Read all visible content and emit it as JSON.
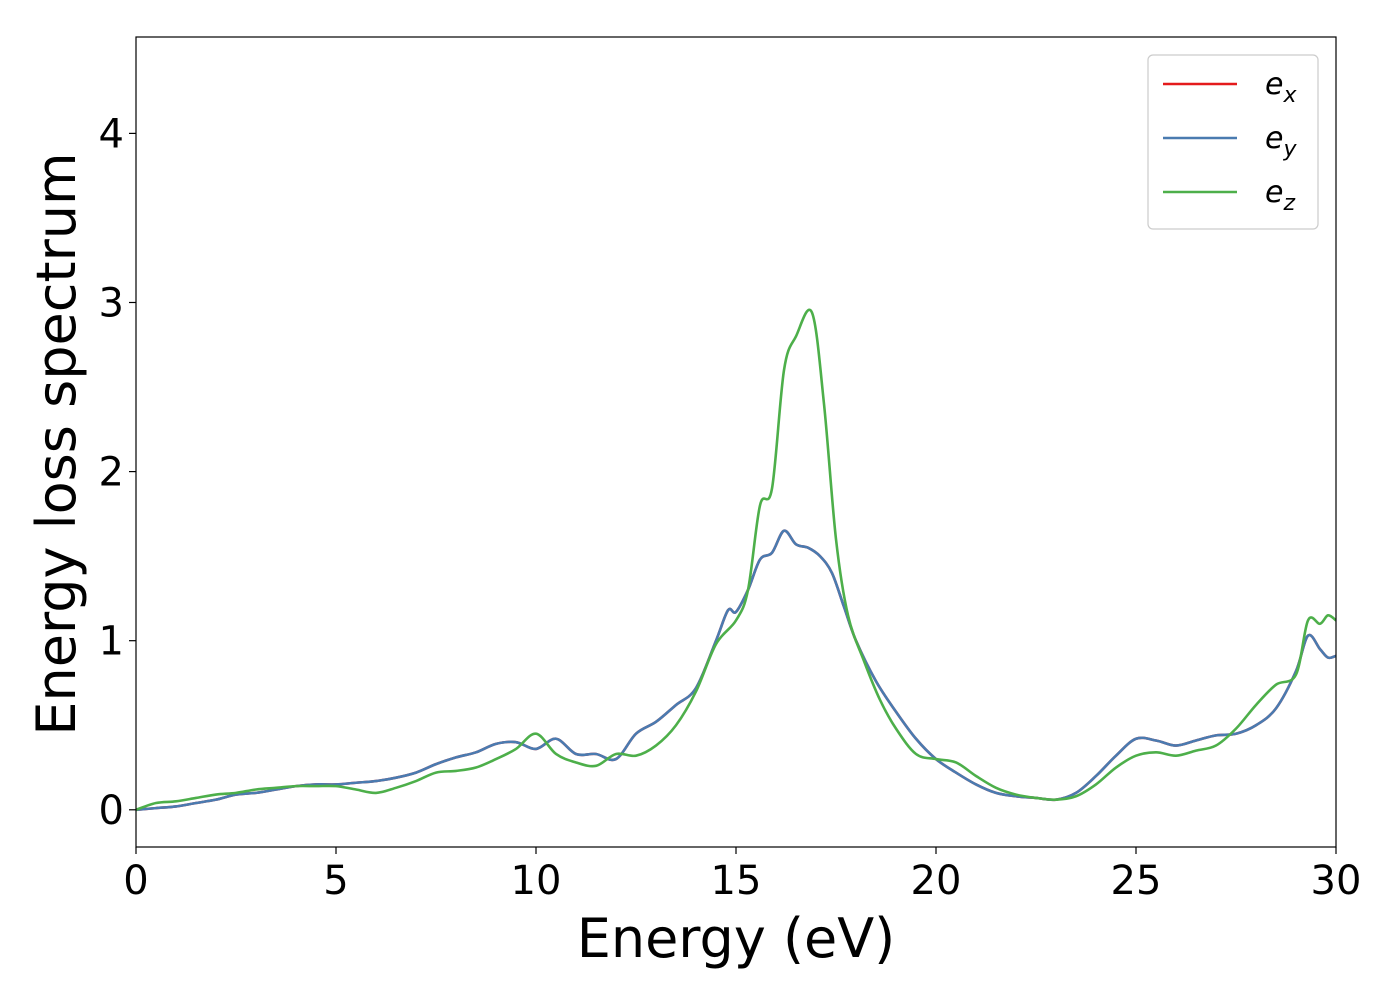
{
  "chart_data": {
    "type": "line",
    "title": "",
    "xlabel": "Energy (eV)",
    "ylabel": "Energy loss spectrum",
    "xlim": [
      0,
      30
    ],
    "ylim": [
      -0.22,
      4.57
    ],
    "x_ticks": [
      0,
      5,
      10,
      15,
      20,
      25,
      30
    ],
    "x_tick_labels": [
      "0",
      "5",
      "10",
      "15",
      "20",
      "25",
      "30"
    ],
    "y_ticks": [
      0,
      1,
      2,
      3,
      4
    ],
    "y_tick_labels": [
      "0",
      "1",
      "2",
      "3",
      "4"
    ],
    "grid": false,
    "legend_position": "top-right",
    "series": [
      {
        "name": "e",
        "subscript": "x",
        "color": "#e41a1c",
        "x": [
          0,
          0.5,
          1,
          1.5,
          2,
          2.5,
          3,
          3.5,
          4,
          4.5,
          5,
          5.5,
          6,
          6.5,
          7,
          7.5,
          8,
          8.5,
          9,
          9.5,
          10,
          10.5,
          11,
          11.5,
          12,
          12.5,
          13,
          13.5,
          14,
          14.5,
          14.8,
          15,
          15.3,
          15.6,
          15.9,
          16.2,
          16.5,
          16.8,
          17.1,
          17.4,
          17.7,
          18,
          18.5,
          19,
          19.5,
          20,
          20.5,
          21,
          21.5,
          22,
          22.5,
          23,
          23.5,
          24,
          24.5,
          25,
          25.5,
          26,
          26.5,
          27,
          27.5,
          28,
          28.5,
          29,
          29.3,
          29.6,
          29.8,
          30
        ],
        "y": [
          0.0,
          0.01,
          0.02,
          0.04,
          0.06,
          0.09,
          0.1,
          0.12,
          0.14,
          0.15,
          0.15,
          0.16,
          0.17,
          0.19,
          0.22,
          0.27,
          0.31,
          0.34,
          0.39,
          0.4,
          0.36,
          0.42,
          0.33,
          0.33,
          0.3,
          0.45,
          0.52,
          0.62,
          0.72,
          1.0,
          1.18,
          1.17,
          1.3,
          1.48,
          1.52,
          1.65,
          1.57,
          1.55,
          1.5,
          1.4,
          1.2,
          1.0,
          0.76,
          0.58,
          0.42,
          0.3,
          0.22,
          0.15,
          0.1,
          0.08,
          0.07,
          0.06,
          0.1,
          0.2,
          0.32,
          0.42,
          0.41,
          0.38,
          0.41,
          0.44,
          0.45,
          0.5,
          0.6,
          0.82,
          1.03,
          0.95,
          0.9,
          0.91
        ]
      },
      {
        "name": "e",
        "subscript": "y",
        "color": "#4a7bb0",
        "x": [
          0,
          0.5,
          1,
          1.5,
          2,
          2.5,
          3,
          3.5,
          4,
          4.5,
          5,
          5.5,
          6,
          6.5,
          7,
          7.5,
          8,
          8.5,
          9,
          9.5,
          10,
          10.5,
          11,
          11.5,
          12,
          12.5,
          13,
          13.5,
          14,
          14.5,
          14.8,
          15,
          15.3,
          15.6,
          15.9,
          16.2,
          16.5,
          16.8,
          17.1,
          17.4,
          17.7,
          18,
          18.5,
          19,
          19.5,
          20,
          20.5,
          21,
          21.5,
          22,
          22.5,
          23,
          23.5,
          24,
          24.5,
          25,
          25.5,
          26,
          26.5,
          27,
          27.5,
          28,
          28.5,
          29,
          29.3,
          29.6,
          29.8,
          30
        ],
        "y": [
          0.0,
          0.01,
          0.02,
          0.04,
          0.06,
          0.09,
          0.1,
          0.12,
          0.14,
          0.15,
          0.15,
          0.16,
          0.17,
          0.19,
          0.22,
          0.27,
          0.31,
          0.34,
          0.39,
          0.4,
          0.36,
          0.42,
          0.33,
          0.33,
          0.3,
          0.45,
          0.52,
          0.62,
          0.72,
          1.0,
          1.18,
          1.17,
          1.3,
          1.48,
          1.52,
          1.65,
          1.57,
          1.55,
          1.5,
          1.4,
          1.2,
          1.0,
          0.76,
          0.58,
          0.42,
          0.3,
          0.22,
          0.15,
          0.1,
          0.08,
          0.07,
          0.06,
          0.1,
          0.2,
          0.32,
          0.42,
          0.41,
          0.38,
          0.41,
          0.44,
          0.45,
          0.5,
          0.6,
          0.82,
          1.03,
          0.95,
          0.9,
          0.91
        ]
      },
      {
        "name": "e",
        "subscript": "z",
        "color": "#4daf4a",
        "x": [
          0,
          0.5,
          1,
          1.5,
          2,
          2.5,
          3,
          3.5,
          4,
          4.5,
          5,
          5.5,
          6,
          6.5,
          7,
          7.5,
          8,
          8.5,
          9,
          9.5,
          10,
          10.5,
          11,
          11.5,
          12,
          12.5,
          13,
          13.5,
          14,
          14.5,
          15,
          15.3,
          15.6,
          15.9,
          16.2,
          16.5,
          16.9,
          17.2,
          17.5,
          17.8,
          18.2,
          18.6,
          19,
          19.5,
          20,
          20.5,
          21,
          21.5,
          22,
          22.5,
          23,
          23.5,
          24,
          24.5,
          25,
          25.5,
          26,
          26.5,
          27,
          27.5,
          28,
          28.5,
          29,
          29.3,
          29.6,
          29.8,
          30
        ],
        "y": [
          0.0,
          0.04,
          0.05,
          0.07,
          0.09,
          0.1,
          0.12,
          0.13,
          0.14,
          0.14,
          0.14,
          0.12,
          0.1,
          0.13,
          0.17,
          0.22,
          0.23,
          0.25,
          0.3,
          0.36,
          0.45,
          0.33,
          0.28,
          0.26,
          0.33,
          0.32,
          0.38,
          0.5,
          0.7,
          0.98,
          1.12,
          1.3,
          1.8,
          1.9,
          2.6,
          2.8,
          2.94,
          2.4,
          1.6,
          1.15,
          0.88,
          0.65,
          0.48,
          0.33,
          0.3,
          0.28,
          0.2,
          0.13,
          0.09,
          0.07,
          0.06,
          0.08,
          0.15,
          0.25,
          0.32,
          0.34,
          0.32,
          0.35,
          0.38,
          0.48,
          0.62,
          0.74,
          0.8,
          1.12,
          1.1,
          1.15,
          1.12
        ]
      }
    ]
  }
}
